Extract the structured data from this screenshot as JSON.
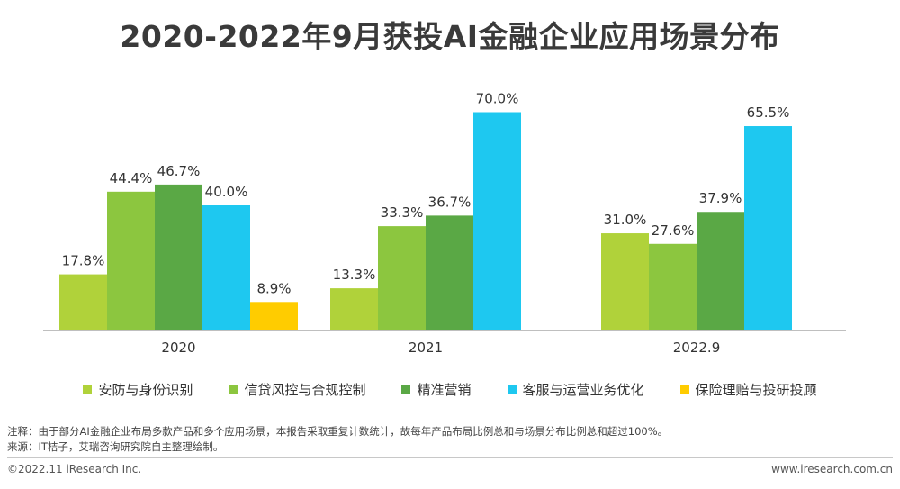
{
  "title": "2020-2022年9月获投AI金融企业应用场景分布",
  "chart_data": {
    "type": "bar",
    "categories": [
      "2020",
      "2021",
      "2022.9"
    ],
    "series": [
      {
        "name": "安防与身份识别",
        "color": "#b0d23a",
        "values": [
          17.8,
          13.3,
          31.0
        ]
      },
      {
        "name": "信贷风控与合规控制",
        "color": "#8cc63f",
        "values": [
          44.4,
          33.3,
          27.6
        ]
      },
      {
        "name": "精准营销",
        "color": "#5aa845",
        "values": [
          46.7,
          36.7,
          37.9
        ]
      },
      {
        "name": "客服与运营业务优化",
        "color": "#1ec8f0",
        "values": [
          40.0,
          70.0,
          65.5
        ]
      },
      {
        "name": "保险理赔与投研投顾",
        "color": "#ffcc00",
        "values": [
          8.9,
          null,
          null
        ]
      }
    ],
    "value_labels": [
      [
        "17.8%",
        "13.3%",
        "31.0%"
      ],
      [
        "44.4%",
        "33.3%",
        "27.6%"
      ],
      [
        "46.7%",
        "36.7%",
        "37.9%"
      ],
      [
        "40.0%",
        "70.0%",
        "65.5%"
      ],
      [
        "8.9%",
        "",
        ""
      ]
    ],
    "ylim": [
      0,
      80
    ],
    "grid": false,
    "legend_position": "bottom"
  },
  "notes": {
    "note1": "注释：由于部分AI金融企业布局多款产品和多个应用场景，本报告采取重复计数统计，故每年产品布局比例总和与场景分布比例总和超过100%。",
    "source": "来源：IT桔子，艾瑞咨询研究院自主整理绘制。"
  },
  "footer": {
    "left": "©2022.11 iResearch Inc.",
    "right": "www.iresearch.com.cn"
  }
}
